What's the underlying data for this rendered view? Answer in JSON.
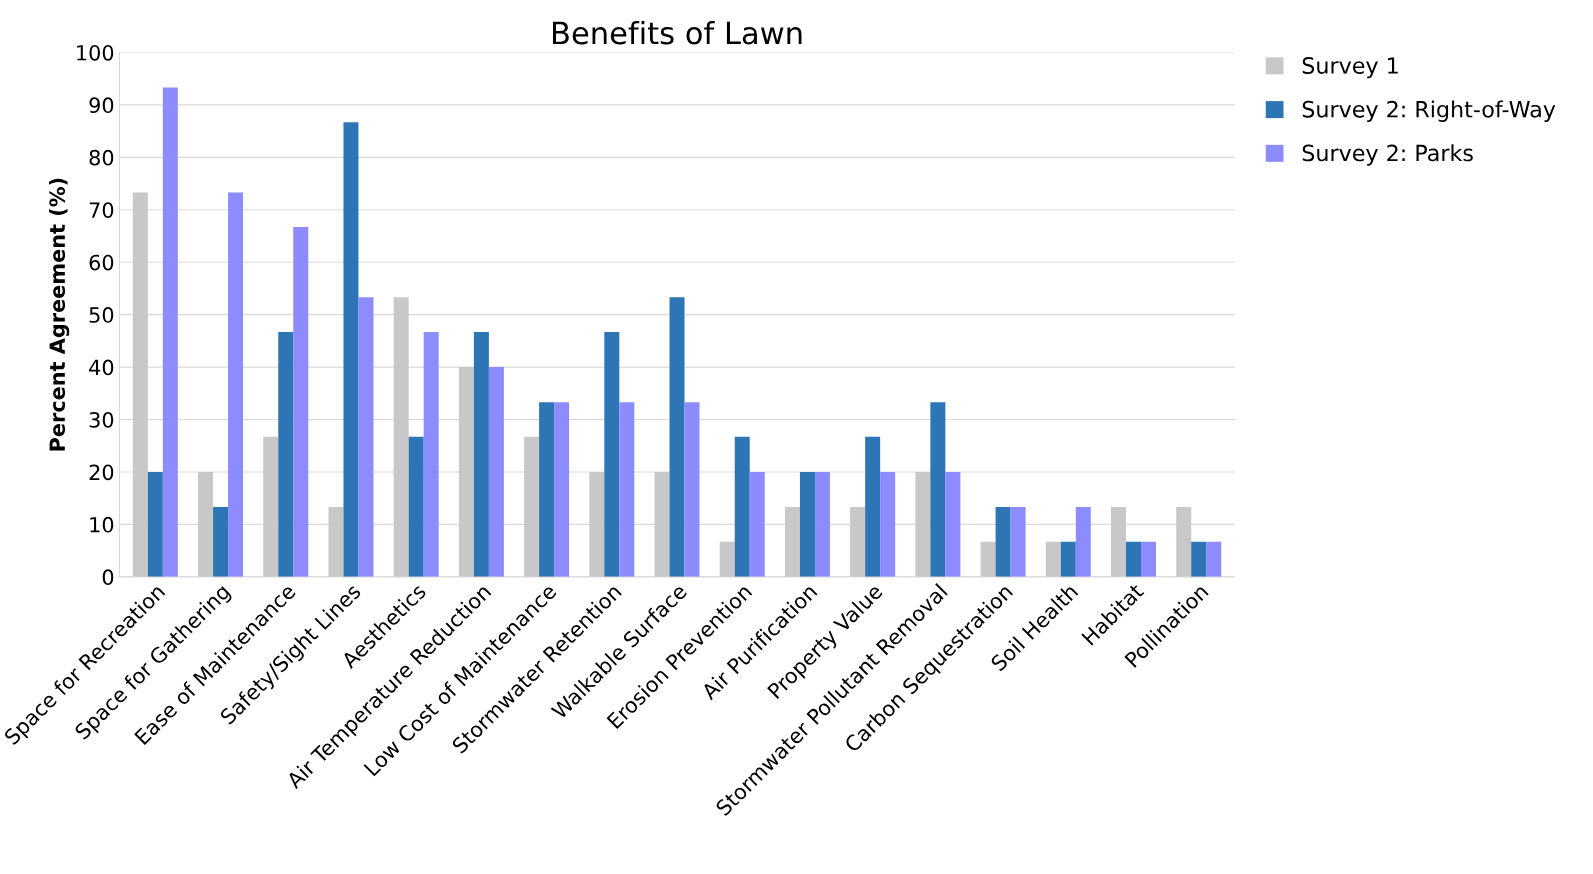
{
  "chart_data": {
    "type": "bar",
    "title": "Benefits of Lawn",
    "ylabel": "Percent Agreement (%)",
    "categories": [
      "Space for Recreation",
      "Space for Gathering",
      "Ease of Maintenance",
      "Safety/Sight Lines",
      "Aesthetics",
      "Air Temperature Reduction",
      "Low Cost of Maintenance",
      "Stormwater Retention",
      "Walkable Surface",
      "Erosion Prevention",
      "Air Purification",
      "Property Value",
      "Stormwater Pollutant Removal",
      "Carbon Sequestration",
      "Soil Health",
      "Habitat",
      "Pollination"
    ],
    "series": [
      {
        "name": "Survey 1",
        "color": "#c8c8c8",
        "values": [
          73.3,
          20,
          26.7,
          13.3,
          53.3,
          40,
          26.7,
          20,
          20,
          6.7,
          13.3,
          13.3,
          20,
          6.7,
          6.7,
          13.3,
          13.3
        ]
      },
      {
        "name": "Survey 2: Right-of-Way",
        "color": "#2e75b6",
        "values": [
          20,
          13.3,
          46.7,
          86.7,
          26.7,
          46.7,
          33.3,
          46.7,
          53.3,
          26.7,
          20,
          26.7,
          33.3,
          13.3,
          6.7,
          6.7,
          6.7
        ]
      },
      {
        "name": "Survey 2: Parks",
        "color": "#8c8cff",
        "values": [
          93.3,
          73.3,
          66.7,
          53.3,
          46.7,
          40,
          33.3,
          33.3,
          33.3,
          20,
          20,
          20,
          20,
          13.3,
          13.3,
          6.7,
          6.7
        ]
      }
    ],
    "ylim": [
      0,
      100
    ],
    "yticks": [
      0,
      10,
      20,
      30,
      40,
      50,
      60,
      70,
      80,
      90,
      100
    ],
    "grid": "y",
    "legend": "top right"
  }
}
